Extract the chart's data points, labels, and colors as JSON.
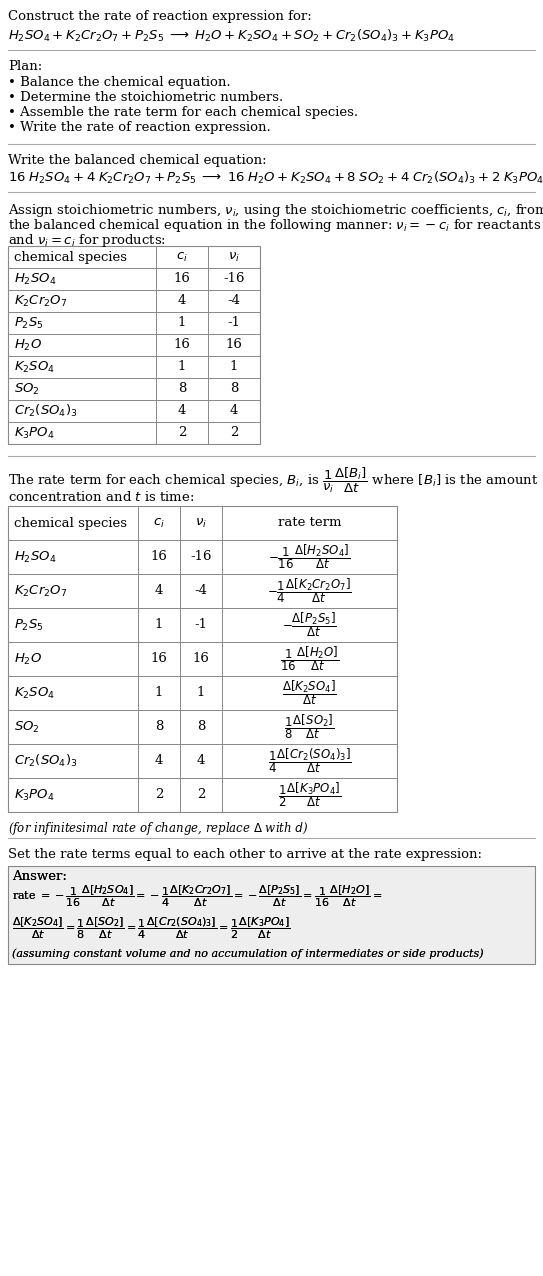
{
  "bg_color": "#ffffff",
  "text_color": "#000000",
  "table_border_color": "#888888",
  "answer_bg_color": "#eeeeee",
  "formulas": [
    "H_2SO_4",
    "K_2Cr_2O_7",
    "P_2S_5",
    "H_2O",
    "K_2SO_4",
    "SO_2",
    "Cr_2(SO_4)_3",
    "K_3PO_4"
  ],
  "ci_vals": [
    "16",
    "4",
    "1",
    "16",
    "1",
    "8",
    "4",
    "2"
  ],
  "vi_vals": [
    "-16",
    "-4",
    "-1",
    "16",
    "1",
    "8",
    "4",
    "2"
  ]
}
